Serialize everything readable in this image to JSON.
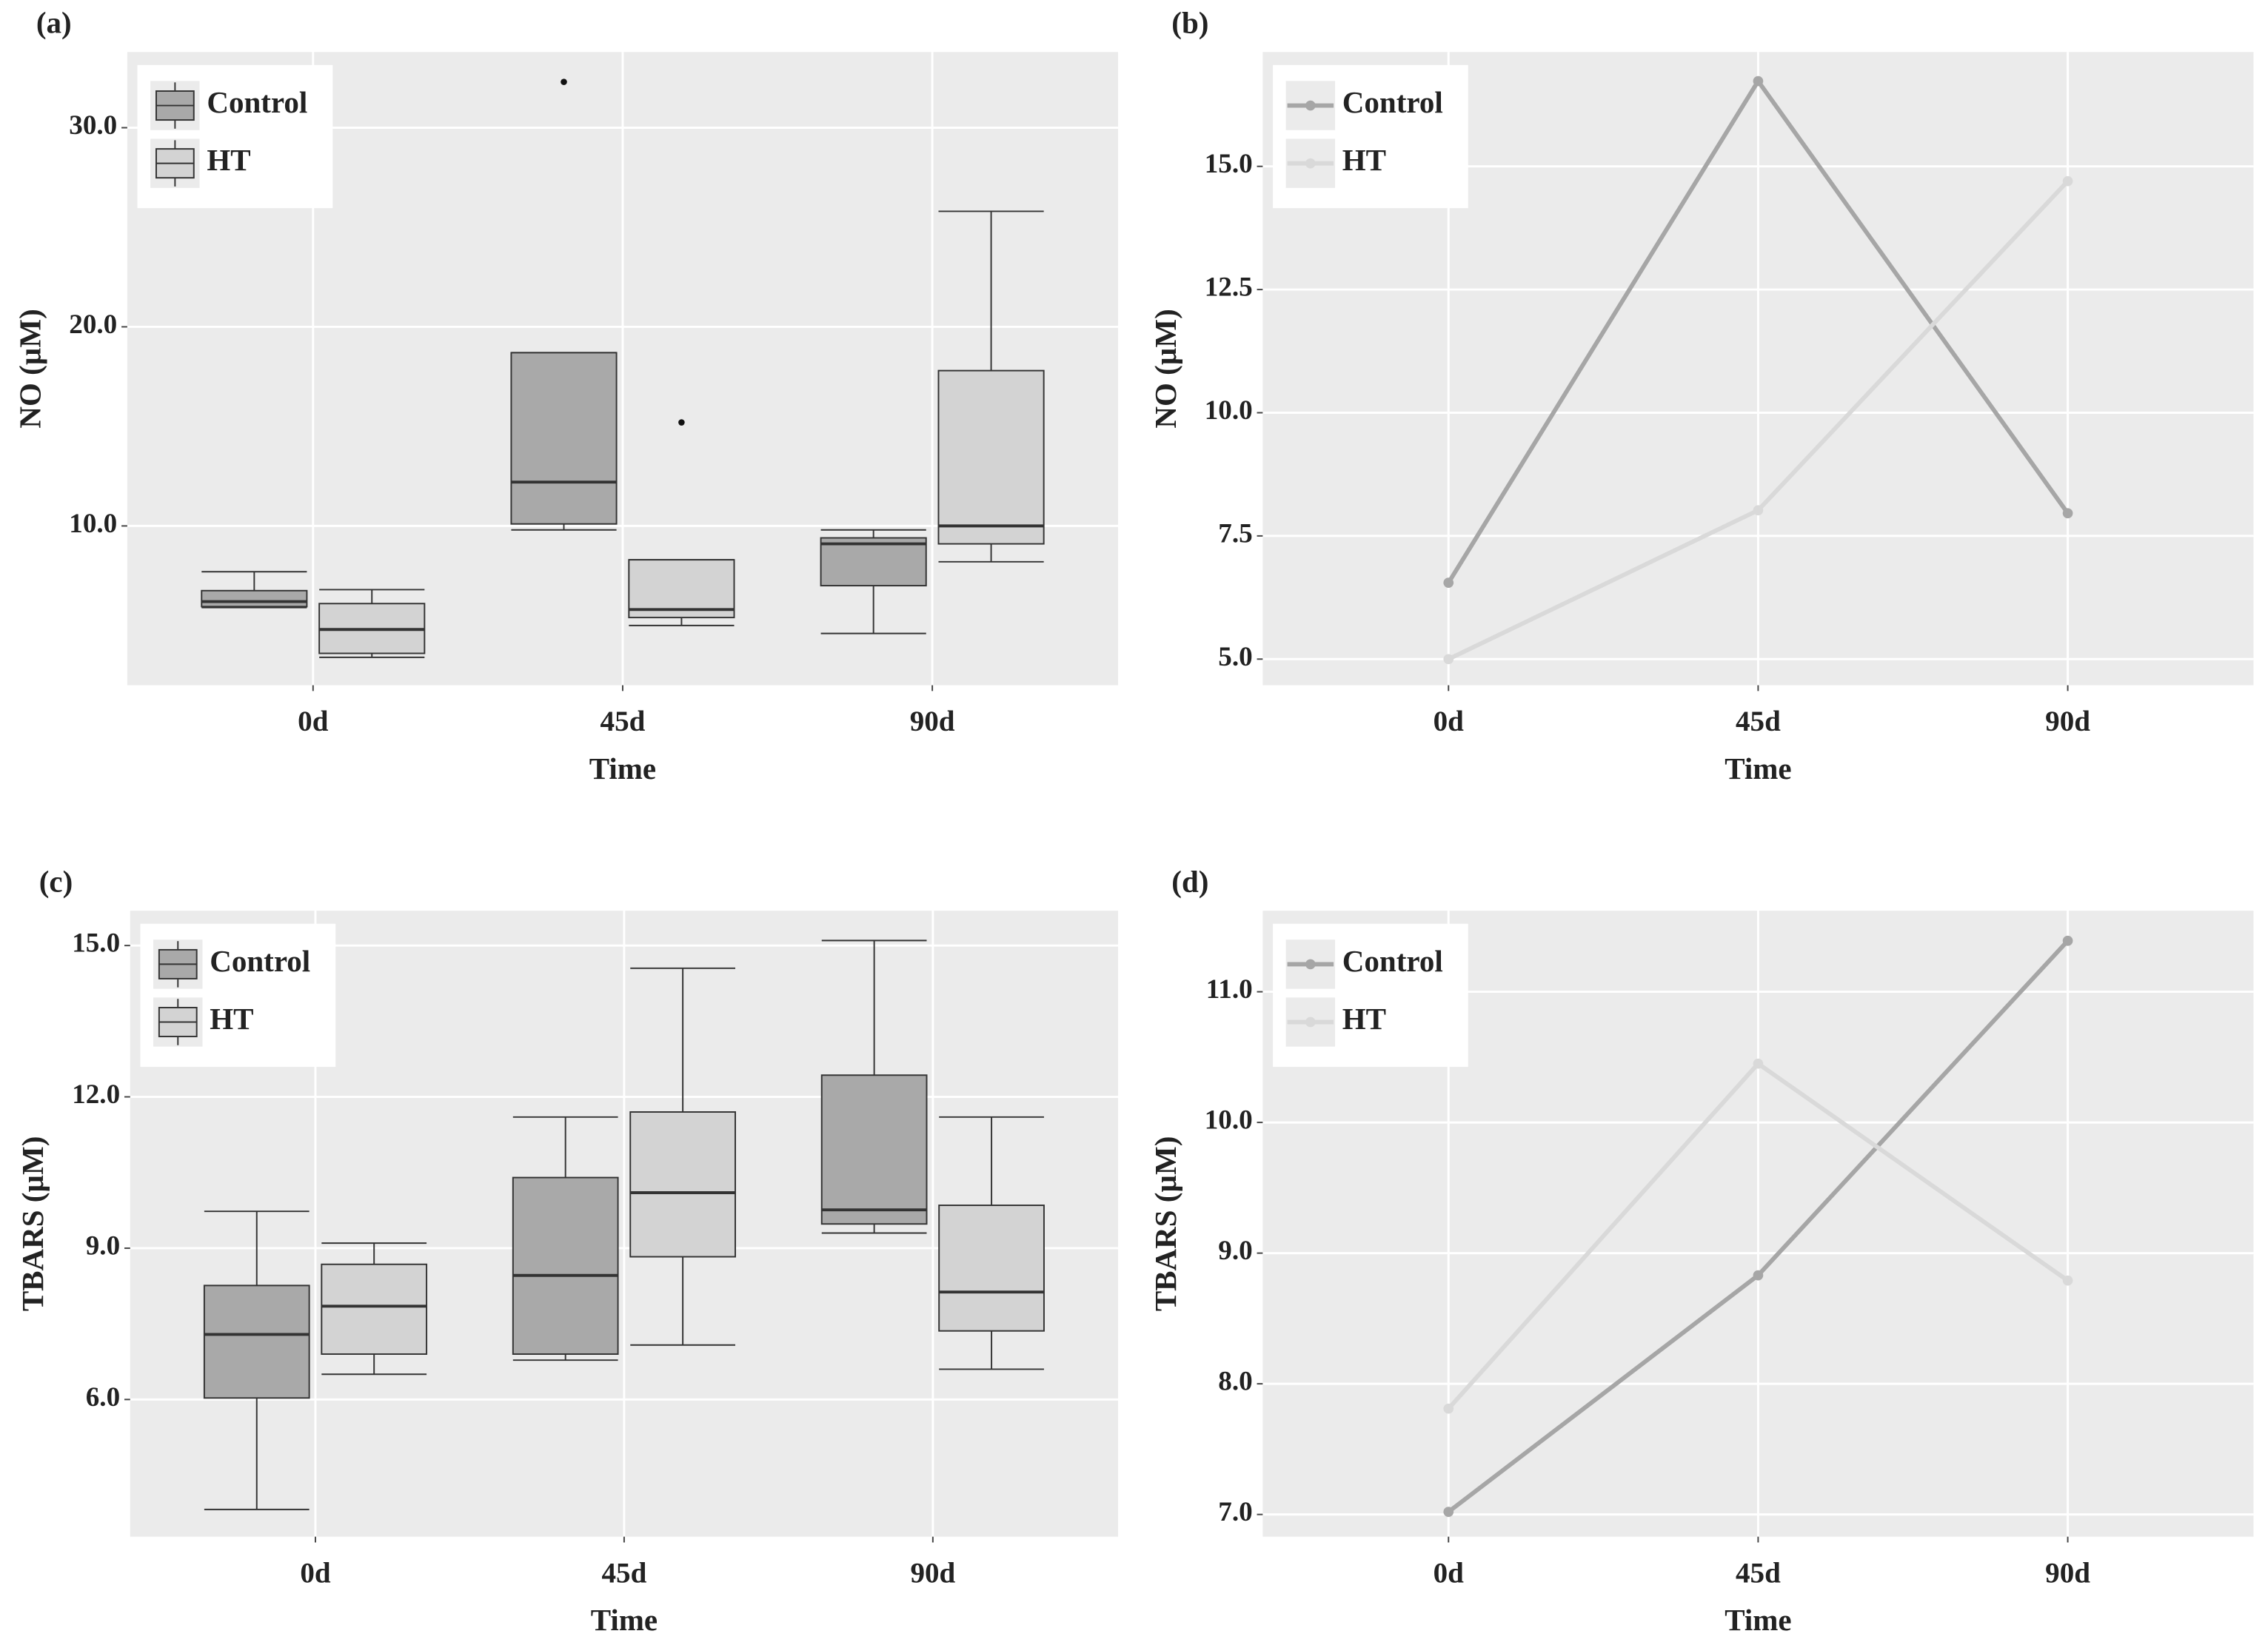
{
  "chart_data": [
    {
      "type": "boxplot",
      "label": "(a)",
      "x_label": "Time",
      "y_label": "NO (µM)",
      "categories": [
        "0d",
        "45d",
        "90d"
      ],
      "ylim": [
        2.0,
        33.8
      ],
      "yticks": [
        {
          "value": 10,
          "label": "10.0"
        },
        {
          "value": 20,
          "label": "20.0"
        },
        {
          "value": 30,
          "label": "30.0"
        }
      ],
      "grid": true,
      "legend": "top-left",
      "series": [
        {
          "name": "Control",
          "color": "#a9a9a9",
          "boxes": [
            {
              "min": 5.9,
              "q1": 5.95,
              "median": 6.2,
              "q3": 6.75,
              "max": 7.7
            },
            {
              "min": 9.8,
              "q1": 10.1,
              "median": 12.2,
              "q3": 18.7,
              "max": 18.7
            },
            {
              "min": 4.6,
              "q1": 7.0,
              "median": 9.1,
              "q3": 9.4,
              "max": 9.8
            }
          ],
          "outliers": [
            [],
            [
              32.3
            ],
            []
          ]
        },
        {
          "name": "HT",
          "color": "#d3d3d3",
          "boxes": [
            {
              "min": 3.4,
              "q1": 3.6,
              "median": 4.8,
              "q3": 6.1,
              "max": 6.8
            },
            {
              "min": 5.0,
              "q1": 5.4,
              "median": 5.8,
              "q3": 8.3,
              "max": 8.3
            },
            {
              "min": 8.2,
              "q1": 9.1,
              "median": 10.0,
              "q3": 17.8,
              "max": 25.8
            }
          ],
          "outliers": [
            [],
            [
              15.2
            ],
            []
          ]
        }
      ]
    },
    {
      "type": "line",
      "label": "(b)",
      "x_label": "Time",
      "y_label": "NO (µM)",
      "categories": [
        "0d",
        "45d",
        "90d"
      ],
      "ylim": [
        4.47,
        17.32
      ],
      "yticks": [
        {
          "value": 5,
          "label": "5.0"
        },
        7.5,
        {
          "value": 10,
          "label": "10.0"
        },
        12.5,
        {
          "value": 15,
          "label": "15.0"
        }
      ],
      "grid": true,
      "legend": "top-left",
      "series": [
        {
          "name": "Control",
          "color": "#a6a6a6",
          "values": [
            6.55,
            16.73,
            7.96
          ]
        },
        {
          "name": "HT",
          "color": "#d9d9d9",
          "values": [
            5.0,
            8.02,
            14.7
          ]
        }
      ]
    },
    {
      "type": "boxplot",
      "label": "(c)",
      "x_label": "Time",
      "y_label": "TBARS (µM)",
      "categories": [
        "0d",
        "45d",
        "90d"
      ],
      "ylim": [
        3.28,
        15.69
      ],
      "yticks": [
        {
          "value": 6,
          "label": "6.0"
        },
        {
          "value": 9,
          "label": "9.0"
        },
        {
          "value": 12,
          "label": "12.0"
        },
        {
          "value": 15,
          "label": "15.0"
        }
      ],
      "grid": true,
      "legend": "top-left",
      "series": [
        {
          "name": "Control",
          "color": "#a9a9a9",
          "boxes": [
            {
              "min": 3.82,
              "q1": 6.03,
              "median": 7.29,
              "q3": 8.26,
              "max": 9.73
            },
            {
              "min": 6.78,
              "q1": 6.9,
              "median": 8.46,
              "q3": 10.4,
              "max": 11.6
            },
            {
              "min": 9.3,
              "q1": 9.48,
              "median": 9.76,
              "q3": 12.43,
              "max": 15.1
            }
          ],
          "outliers": [
            [],
            [],
            []
          ]
        },
        {
          "name": "HT",
          "color": "#d3d3d3",
          "boxes": [
            {
              "min": 6.5,
              "q1": 6.9,
              "median": 7.85,
              "q3": 8.68,
              "max": 9.1
            },
            {
              "min": 7.08,
              "q1": 8.83,
              "median": 10.1,
              "q3": 11.7,
              "max": 14.55
            },
            {
              "min": 6.6,
              "q1": 7.36,
              "median": 8.13,
              "q3": 9.85,
              "max": 11.6
            }
          ],
          "outliers": [
            [],
            [],
            []
          ]
        }
      ]
    },
    {
      "type": "line",
      "label": "(d)",
      "x_label": "Time",
      "y_label": "TBARS (µM)",
      "categories": [
        "0d",
        "45d",
        "90d"
      ],
      "ylim": [
        6.83,
        11.62
      ],
      "yticks": [
        {
          "value": 7,
          "label": "7.0"
        },
        {
          "value": 8,
          "label": "8.0"
        },
        {
          "value": 9,
          "label": "9.0"
        },
        {
          "value": 10,
          "label": "10.0"
        },
        {
          "value": 11,
          "label": "11.0"
        }
      ],
      "grid": true,
      "legend": "top-left",
      "series": [
        {
          "name": "Control",
          "color": "#a6a6a6",
          "values": [
            7.02,
            8.83,
            11.39
          ]
        },
        {
          "name": "HT",
          "color": "#d9d9d9",
          "values": [
            7.81,
            10.45,
            8.79
          ]
        }
      ]
    }
  ]
}
